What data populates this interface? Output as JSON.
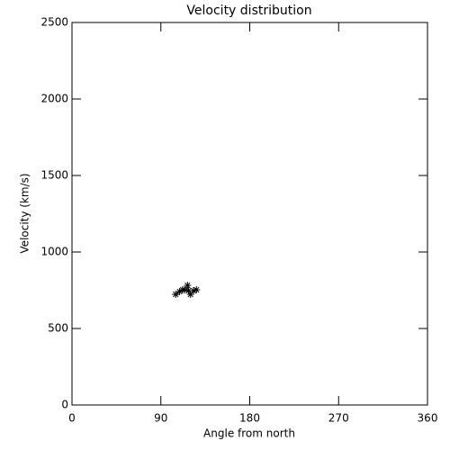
{
  "chart_data": {
    "type": "scatter",
    "title": "Velocity distribution",
    "x_label": "Angle from north",
    "y_label": "Velocity (km/s)",
    "x": [
      105,
      109,
      112,
      114,
      117,
      118,
      120,
      123,
      126
    ],
    "values": [
      723,
      741,
      753,
      753,
      782,
      747,
      723,
      747,
      753
    ],
    "color": "#000000",
    "marker": "asterisk",
    "xlim": [
      0,
      360
    ],
    "xticks": [
      0,
      90,
      180,
      270,
      360
    ],
    "ylim": [
      0,
      2500
    ],
    "yticks": [
      0,
      500,
      1000,
      1500,
      2000,
      2500
    ],
    "grid": false
  }
}
